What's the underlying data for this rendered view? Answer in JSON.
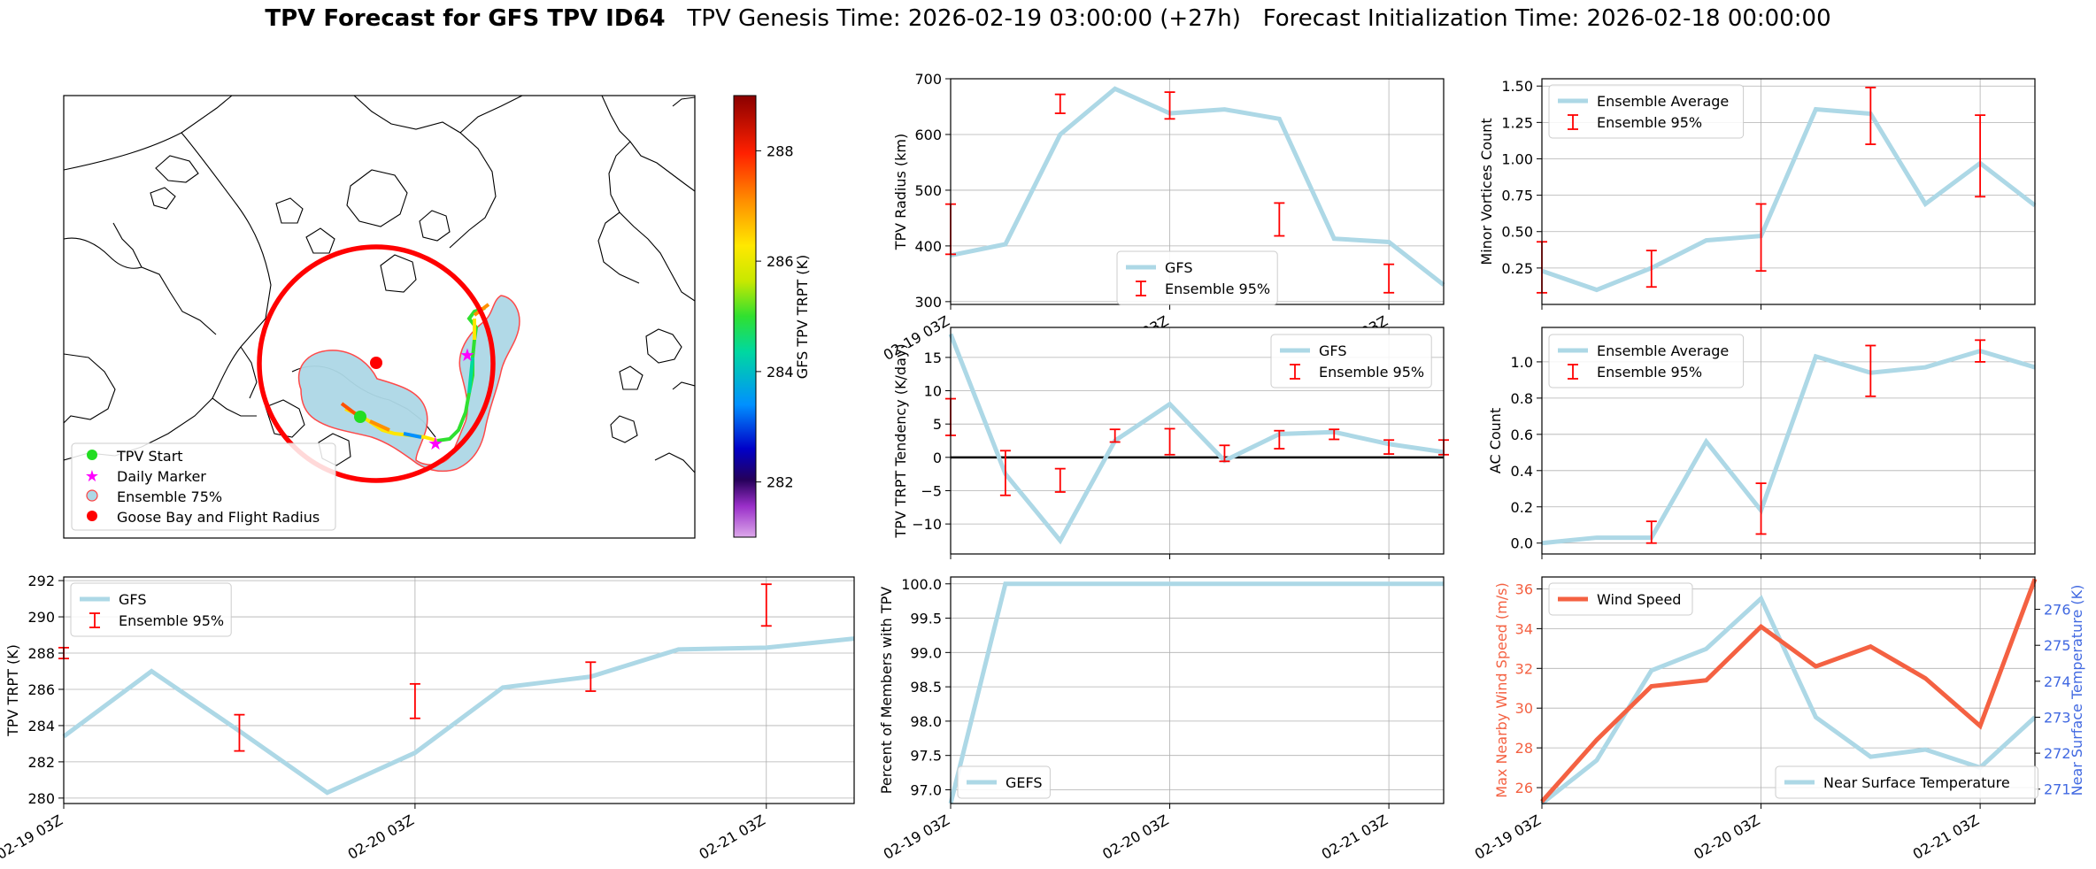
{
  "figure": {
    "title_bold": "TPV Forecast for GFS TPV ID64",
    "title_genesis": "TPV Genesis Time: 2026-02-19 03:00:00 (+27h)",
    "title_init": "Forecast Initialization Time: 2026-02-18 00:00:00"
  },
  "colors": {
    "series_line": "#add8e6",
    "error_bar": "#ff0000",
    "wind_line": "#f46142",
    "temp_axis": "#4169e1",
    "wind_axis": "#f46142",
    "grid": "#b0b0b0"
  },
  "map": {
    "colorbar_label": "GFS TPV TRPT (K)",
    "colorbar_ticks": [
      282,
      284,
      286,
      288
    ],
    "colorbar_range": [
      281,
      289
    ],
    "legend": [
      "TPV Start",
      "Daily Marker",
      "Ensemble 75%",
      "Goose Bay and Flight Radius"
    ],
    "icons": [
      "green-dot-icon",
      "magenta-star-icon",
      "light-blue-patch-icon",
      "red-dot-icon"
    ]
  },
  "chart_data": [
    {
      "id": "radius",
      "type": "line",
      "ylabel": "TPV Radius (km)",
      "ylim": [
        295,
        700
      ],
      "yticks": [
        300,
        400,
        500,
        600,
        700
      ],
      "x": [
        0,
        3,
        6,
        9,
        12,
        15,
        18,
        21,
        24,
        27
      ],
      "x_unit": "hours after 02-19 03Z",
      "xlim": [
        0,
        27
      ],
      "xticks": [
        0,
        12,
        24
      ],
      "xtick_labels": [
        "02-19 03Z",
        "02-20 03Z",
        "02-21 03Z"
      ],
      "series": [
        {
          "name": "GFS",
          "values": [
            383,
            403,
            600,
            682,
            638,
            645,
            628,
            413,
            407,
            330
          ]
        }
      ],
      "errorbars": [
        {
          "x": 0,
          "lo": 385,
          "hi": 475
        },
        {
          "x": 6,
          "lo": 638,
          "hi": 672
        },
        {
          "x": 12,
          "lo": 628,
          "hi": 676
        },
        {
          "x": 18,
          "lo": 418,
          "hi": 477
        },
        {
          "x": 24,
          "lo": 316,
          "hi": 367
        }
      ],
      "legend": [
        "GFS",
        "Ensemble 95%"
      ],
      "legend_pos": "lower-center"
    },
    {
      "id": "minor",
      "type": "line",
      "ylabel": "Minor Vortices Count",
      "ylim": [
        0.0,
        1.55
      ],
      "yticks": [
        0.25,
        0.5,
        0.75,
        1.0,
        1.25,
        1.5
      ],
      "ytick_labels": [
        "0.25",
        "0.50",
        "0.75",
        "1.00",
        "1.25",
        "1.50"
      ],
      "x": [
        0,
        3,
        6,
        9,
        12,
        15,
        18,
        21,
        24,
        27
      ],
      "xlim": [
        0,
        27
      ],
      "xticks": [
        0,
        12,
        24
      ],
      "series": [
        {
          "name": "Ensemble Average",
          "values": [
            0.23,
            0.1,
            0.25,
            0.44,
            0.47,
            1.34,
            1.31,
            0.69,
            0.97,
            0.68
          ]
        }
      ],
      "errorbars": [
        {
          "x": 0,
          "lo": 0.08,
          "hi": 0.43
        },
        {
          "x": 6,
          "lo": 0.12,
          "hi": 0.37
        },
        {
          "x": 12,
          "lo": 0.23,
          "hi": 0.69
        },
        {
          "x": 18,
          "lo": 1.1,
          "hi": 1.49
        },
        {
          "x": 24,
          "lo": 0.74,
          "hi": 1.3
        }
      ],
      "legend": [
        "Ensemble Average",
        "Ensemble 95%"
      ],
      "legend_pos": "top-left"
    },
    {
      "id": "tendency",
      "type": "line",
      "ylabel": "TPV TRPT Tendency (K/day)",
      "ylim": [
        -14.5,
        19.5
      ],
      "yticks": [
        -10,
        -5,
        0,
        5,
        10,
        15
      ],
      "x": [
        0,
        3,
        6,
        9,
        12,
        15,
        18,
        21,
        24,
        27
      ],
      "xlim": [
        0,
        27
      ],
      "xticks": [
        0,
        12,
        24
      ],
      "series": [
        {
          "name": "GFS",
          "values": [
            18.5,
            -2.5,
            -12.5,
            2.5,
            8.0,
            -0.5,
            3.5,
            3.8,
            2.0,
            0.8
          ]
        }
      ],
      "errorbars": [
        {
          "x": 0,
          "lo": 3.3,
          "hi": 8.8
        },
        {
          "x": 3,
          "lo": -5.7,
          "hi": 1.0
        },
        {
          "x": 6,
          "lo": -5.2,
          "hi": -1.7
        },
        {
          "x": 9,
          "lo": 2.3,
          "hi": 4.2
        },
        {
          "x": 12,
          "lo": 0.4,
          "hi": 4.3
        },
        {
          "x": 15,
          "lo": -0.6,
          "hi": 1.8
        },
        {
          "x": 18,
          "lo": 1.3,
          "hi": 4.0
        },
        {
          "x": 21,
          "lo": 2.7,
          "hi": 4.2
        },
        {
          "x": 24,
          "lo": 0.5,
          "hi": 2.6
        },
        {
          "x": 27,
          "lo": 0.4,
          "hi": 2.6
        }
      ],
      "hline": 0,
      "legend": [
        "GFS",
        "Ensemble 95%"
      ],
      "legend_pos": "top-right"
    },
    {
      "id": "ac",
      "type": "line",
      "ylabel": "AC Count",
      "ylim": [
        -0.06,
        1.19
      ],
      "yticks": [
        0.0,
        0.2,
        0.4,
        0.6,
        0.8,
        1.0
      ],
      "ytick_labels": [
        "0.0",
        "0.2",
        "0.4",
        "0.6",
        "0.8",
        "1.0"
      ],
      "x": [
        0,
        3,
        6,
        9,
        12,
        15,
        18,
        21,
        24,
        27
      ],
      "xlim": [
        0,
        27
      ],
      "xticks": [
        0,
        12,
        24
      ],
      "series": [
        {
          "name": "Ensemble Average",
          "values": [
            0.0,
            0.03,
            0.03,
            0.56,
            0.18,
            1.03,
            0.94,
            0.97,
            1.06,
            0.97
          ]
        }
      ],
      "errorbars": [
        {
          "x": 6,
          "lo": 0.0,
          "hi": 0.12
        },
        {
          "x": 12,
          "lo": 0.05,
          "hi": 0.33
        },
        {
          "x": 18,
          "lo": 0.81,
          "hi": 1.09
        },
        {
          "x": 24,
          "lo": 1.0,
          "hi": 1.12
        }
      ],
      "legend": [
        "Ensemble Average",
        "Ensemble 95%"
      ],
      "legend_pos": "top-left"
    },
    {
      "id": "trpt",
      "type": "line",
      "ylabel": "TPV TRPT (K)",
      "ylim": [
        279.7,
        292.2
      ],
      "yticks": [
        280,
        282,
        284,
        286,
        288,
        290,
        292
      ],
      "x": [
        0,
        3,
        6,
        9,
        12,
        15,
        18,
        21,
        24,
        27
      ],
      "xlim": [
        0,
        27
      ],
      "xticks": [
        0,
        12,
        24
      ],
      "xtick_labels": [
        "02-19 03Z",
        "02-20 03Z",
        "02-21 03Z"
      ],
      "series": [
        {
          "name": "GFS",
          "values": [
            283.4,
            287.0,
            283.7,
            280.3,
            282.5,
            286.1,
            286.7,
            288.2,
            288.3,
            288.8
          ]
        }
      ],
      "errorbars": [
        {
          "x": 0,
          "lo": 287.7,
          "hi": 288.3
        },
        {
          "x": 6,
          "lo": 282.6,
          "hi": 284.6
        },
        {
          "x": 12,
          "lo": 284.4,
          "hi": 286.3
        },
        {
          "x": 18,
          "lo": 285.9,
          "hi": 287.5
        },
        {
          "x": 24,
          "lo": 289.5,
          "hi": 291.8
        }
      ],
      "legend": [
        "GFS",
        "Ensemble 95%"
      ],
      "legend_pos": "top-left"
    },
    {
      "id": "percent",
      "type": "line",
      "ylabel": "Percent of Members with TPV",
      "ylim": [
        96.8,
        100.1
      ],
      "yticks": [
        97.0,
        97.5,
        98.0,
        98.5,
        99.0,
        99.5,
        100.0
      ],
      "ytick_labels": [
        "97.0",
        "97.5",
        "98.0",
        "98.5",
        "99.0",
        "99.5",
        "100.0"
      ],
      "x": [
        0,
        3,
        6,
        9,
        12,
        15,
        18,
        21,
        24,
        27
      ],
      "xlim": [
        0,
        27
      ],
      "xticks": [
        0,
        12,
        24
      ],
      "xtick_labels": [
        "02-19 03Z",
        "02-20 03Z",
        "02-21 03Z"
      ],
      "series": [
        {
          "name": "GEFS",
          "values": [
            96.8,
            100.0,
            100.0,
            100.0,
            100.0,
            100.0,
            100.0,
            100.0,
            100.0,
            100.0
          ]
        }
      ],
      "legend": [
        "GEFS"
      ],
      "legend_pos": "lower-left"
    },
    {
      "id": "wind",
      "type": "line",
      "ylabel": "Max Nearby Wind Speed (m/s)",
      "ylabel_right": "Near Surface Temperature (K)",
      "ylim": [
        25.2,
        36.6
      ],
      "yticks": [
        26,
        28,
        30,
        32,
        34,
        36
      ],
      "ylim_right": [
        270.6,
        276.9
      ],
      "yticks_right": [
        271,
        272,
        273,
        274,
        275,
        276
      ],
      "x": [
        0,
        3,
        6,
        9,
        12,
        15,
        18,
        21,
        24,
        27
      ],
      "xlim": [
        0,
        27
      ],
      "xticks": [
        0,
        12,
        24
      ],
      "xtick_labels": [
        "02-19 03Z",
        "02-20 03Z",
        "02-21 03Z"
      ],
      "series": [
        {
          "name": "Wind Speed",
          "values": [
            25.3,
            28.4,
            31.1,
            31.4,
            34.1,
            32.1,
            33.1,
            31.5,
            29.1,
            36.5
          ],
          "axis": "left"
        },
        {
          "name": "Near Surface Temperature",
          "values": [
            270.6,
            271.8,
            274.3,
            274.9,
            276.3,
            273.0,
            271.9,
            272.1,
            271.6,
            273.0
          ],
          "axis": "right"
        }
      ],
      "legend": [
        "Wind Speed",
        "Near Surface Temperature"
      ],
      "legend_pos": "top-left / lower-right"
    }
  ]
}
